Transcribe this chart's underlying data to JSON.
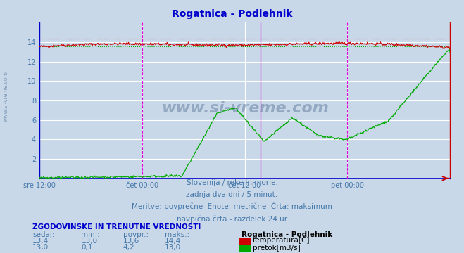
{
  "title": "Rogatnica - Podlehnik",
  "title_color": "#0000cc",
  "bg_color": "#c8d8e8",
  "xlim": [
    0,
    576
  ],
  "ylim": [
    0,
    16
  ],
  "ytick_vals": [
    2,
    4,
    6,
    8,
    10,
    12,
    14
  ],
  "xtick_positions": [
    0,
    144,
    288,
    432
  ],
  "xtick_labels": [
    "sre 12:00",
    "čet 00:00",
    "čet 12:00",
    "pet 00:00"
  ],
  "temp_color": "#cc0000",
  "flow_color": "#00aa00",
  "temp_max_line": 14.4,
  "temp_avg_line": 13.6,
  "vline_day1": 144,
  "vline_day2": 432,
  "vline_now": 310,
  "text_color": "#4477aa",
  "watermark": "www.si-vreme.com",
  "subtitle1": "Slovenija / reke in morje.",
  "subtitle2": "zadnja dva dni / 5 minut.",
  "subtitle3": "Meritve: povprečne  Enote: metrične  Črta: maksimum",
  "subtitle4": "navpična črta - razdelek 24 ur",
  "table_header": "ZGODOVINSKE IN TRENUTNE VREDNOSTI",
  "col_headers": [
    "sedaj:",
    "min.:",
    "povpr.:",
    "maks.:"
  ],
  "temp_row": [
    "13,4",
    "13,0",
    "13,6",
    "14,4"
  ],
  "flow_row": [
    "13,0",
    "0,1",
    "4,2",
    "13,0"
  ],
  "legend_title": "Rogatnica - Podlehnik",
  "legend_temp": "temperatura[C]",
  "legend_flow": "pretok[m3/s]"
}
